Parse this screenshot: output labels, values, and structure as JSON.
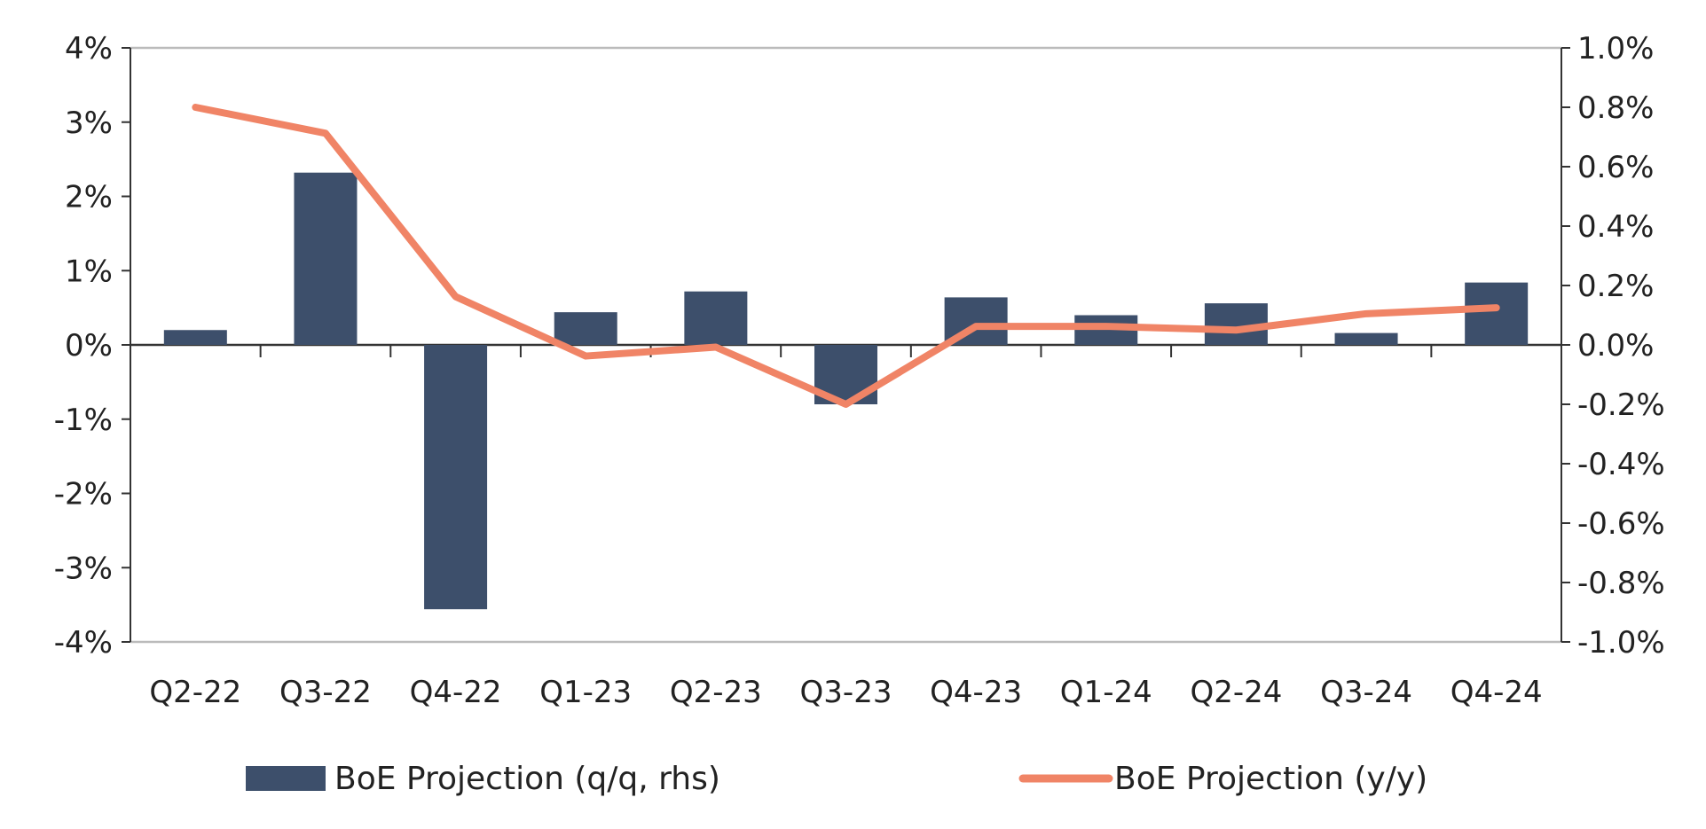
{
  "chart_data": {
    "type": "bar+line",
    "title": "",
    "categories": [
      "Q2-22",
      "Q3-22",
      "Q4-22",
      "Q1-23",
      "Q2-23",
      "Q3-23",
      "Q4-23",
      "Q1-24",
      "Q2-24",
      "Q3-24",
      "Q4-24"
    ],
    "series": [
      {
        "name": "BoE Projection (q/q, rhs)",
        "type": "bar",
        "axis": "right",
        "color": "#3d4f6b",
        "values": [
          0.05,
          0.58,
          -0.89,
          0.11,
          0.18,
          -0.2,
          0.16,
          0.1,
          0.14,
          0.04,
          0.21
        ]
      },
      {
        "name": "BoE Projection (y/y)",
        "type": "line",
        "axis": "left",
        "color": "#f08466",
        "values": [
          3.2,
          2.85,
          0.65,
          -0.15,
          -0.03,
          -0.8,
          0.25,
          0.25,
          0.2,
          0.42,
          0.5
        ]
      }
    ],
    "y_left": {
      "ylim": [
        -4,
        4
      ],
      "ticks": [
        4,
        3,
        2,
        1,
        0,
        -1,
        -2,
        -3,
        -4
      ],
      "tick_labels": [
        "4%",
        "3%",
        "2%",
        "1%",
        "0%",
        "-1%",
        "-2%",
        "-3%",
        "-4%"
      ]
    },
    "y_right": {
      "ylim": [
        -1,
        1
      ],
      "ticks": [
        1,
        0.8,
        0.6,
        0.4,
        0.2,
        0,
        -0.2,
        -0.4,
        -0.6,
        -0.8,
        -1
      ],
      "tick_labels": [
        "1.0%",
        "0.8%",
        "0.6%",
        "0.4%",
        "0.2%",
        "0.0%",
        "-0.2%",
        "-0.4%",
        "-0.6%",
        "-0.8%",
        "-1.0%"
      ]
    },
    "grid": false,
    "legend": "bottom"
  }
}
